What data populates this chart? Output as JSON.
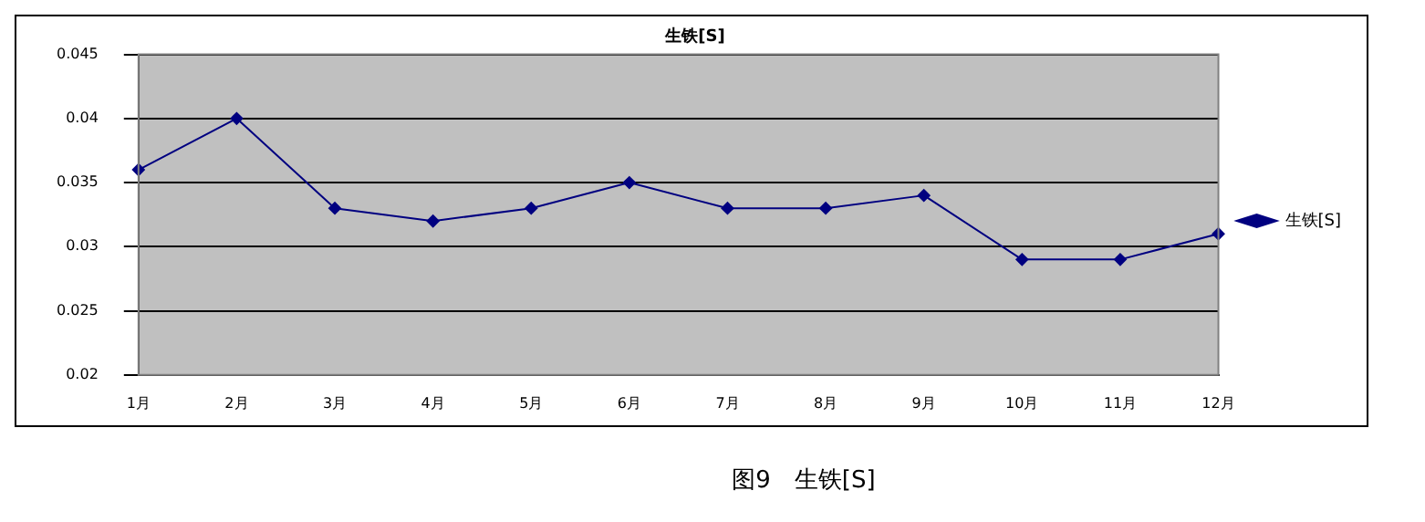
{
  "chart_data": {
    "type": "line",
    "title": "生铁[S]",
    "categories": [
      "1月",
      "2月",
      "3月",
      "4月",
      "5月",
      "6月",
      "7月",
      "8月",
      "9月",
      "10月",
      "11月",
      "12月"
    ],
    "series": [
      {
        "name": "生铁[S]",
        "color": "#000080",
        "values": [
          0.036,
          0.04,
          0.033,
          0.032,
          0.033,
          0.035,
          0.033,
          0.033,
          0.034,
          0.029,
          0.029,
          0.031
        ]
      }
    ],
    "ylim": [
      0.02,
      0.045
    ],
    "yticks": [
      0.02,
      0.025,
      0.03,
      0.035,
      0.04,
      0.045
    ],
    "grid": "y",
    "legend": "right",
    "marker": "diamond",
    "line_style": "solid",
    "annotations": [
      "图9　生铁[S]"
    ]
  }
}
